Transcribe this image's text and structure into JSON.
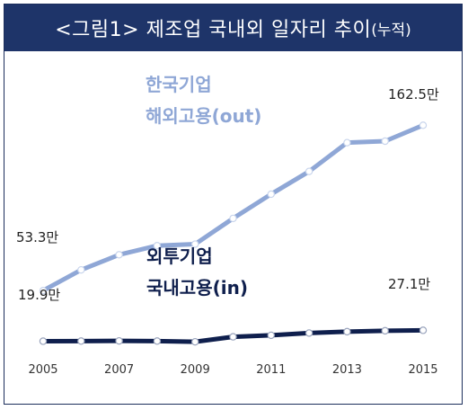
{
  "title": {
    "main": "<그림1> 제조업 국내외 일자리 추이",
    "suffix": "(누적)"
  },
  "chart_data": {
    "type": "line",
    "title": "<그림1> 제조업 국내외 일자리 추이(누적)",
    "x": [
      2005,
      2006,
      2007,
      2008,
      2009,
      2010,
      2011,
      2012,
      2013,
      2014,
      2015
    ],
    "xticks": [
      "2005",
      "2007",
      "2009",
      "2011",
      "2013",
      "2015"
    ],
    "ylim": [
      0,
      190
    ],
    "series": [
      {
        "name_lines": [
          "한국기업",
          "해외고용(out)"
        ],
        "color": "#8fa7d6",
        "values": [
          53.3,
          67,
          77,
          83,
          84,
          101,
          117,
          132,
          151,
          152,
          162.5
        ],
        "start_label": "53.3만",
        "end_label": "162.5만"
      },
      {
        "name_lines": [
          "외투기업",
          "국내고용(in)"
        ],
        "color": "#0f1f4d",
        "values": [
          19.9,
          20.0,
          20.1,
          20.0,
          19.5,
          22.8,
          23.8,
          25.3,
          26.2,
          26.8,
          27.1
        ],
        "start_label": "19.9만",
        "end_label": "27.1만"
      }
    ],
    "grid": false,
    "legend": "inline"
  }
}
